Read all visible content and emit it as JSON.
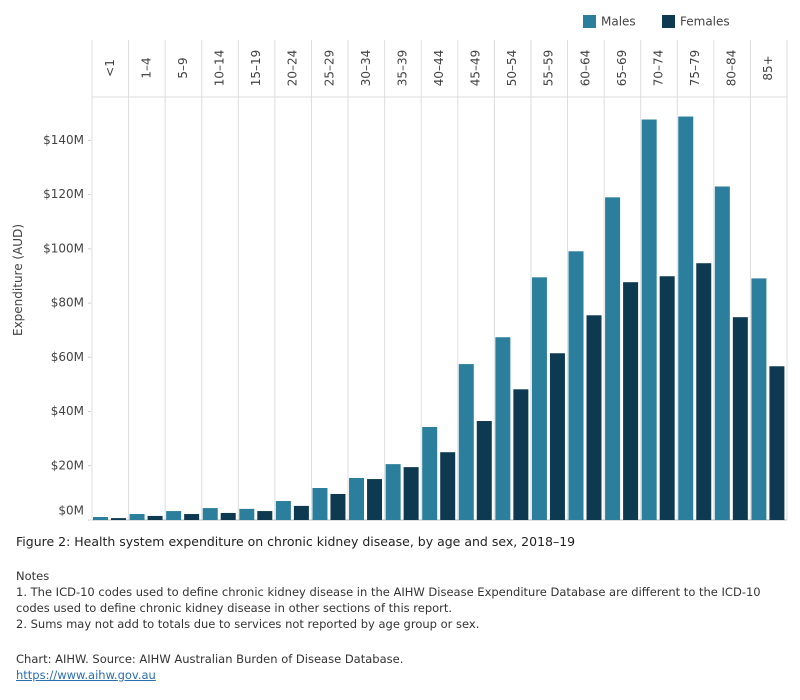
{
  "chart_data": {
    "type": "bar",
    "title": "Figure 2: Health system expenditure on chronic kidney disease, by age and sex, 2018–19",
    "y_label": "Expenditure (AUD)",
    "categories": [
      "<1",
      "1–4",
      "5–9",
      "10–14",
      "15–19",
      "20–24",
      "25–29",
      "30–34",
      "35–39",
      "40–44",
      "45–49",
      "50–54",
      "55–59",
      "60–64",
      "65–69",
      "70–74",
      "75–79",
      "80–84",
      "85+"
    ],
    "series": [
      {
        "name": "Males",
        "color": "#2b7f9c",
        "values": [
          1.1,
          2.2,
          3.3,
          4.4,
          4.1,
          7.0,
          11.8,
          15.5,
          20.6,
          34.3,
          57.5,
          67.4,
          89.5,
          99.1,
          119.0,
          147.7,
          148.8,
          123.0,
          89.1
        ]
      },
      {
        "name": "Females",
        "color": "#0e3a51",
        "values": [
          0.7,
          1.5,
          2.2,
          2.6,
          3.3,
          5.2,
          9.6,
          15.1,
          19.5,
          25.0,
          36.5,
          48.2,
          61.5,
          75.5,
          87.7,
          89.9,
          94.7,
          74.8,
          56.7
        ]
      }
    ],
    "ylim": [
      0,
      156
    ],
    "yticks": [
      {
        "value": 0,
        "label": "$0M"
      },
      {
        "value": 20,
        "label": "$20M"
      },
      {
        "value": 40,
        "label": "$40M"
      },
      {
        "value": 60,
        "label": "$60M"
      },
      {
        "value": 80,
        "label": "$80M"
      },
      {
        "value": 100,
        "label": "$100M"
      },
      {
        "value": 120,
        "label": "$120M"
      },
      {
        "value": 140,
        "label": "$140M"
      }
    ],
    "legend": "top-right"
  },
  "notes": {
    "heading": "Notes",
    "items": [
      "1. The ICD-10 codes used to define chronic kidney disease in the AIHW Disease Expenditure Database are different to the ICD-10 codes used to define chronic kidney disease in other sections of this report.",
      "2. Sums may not add to totals due to services not reported by age group or sex."
    ]
  },
  "source": "Chart: AIHW. Source: AIHW Australian Burden of Disease Database.",
  "link": "https://www.aihw.gov.au"
}
